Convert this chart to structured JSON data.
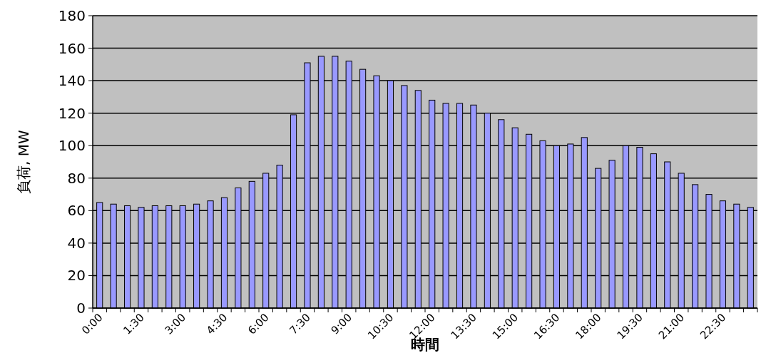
{
  "chart_data": {
    "type": "bar",
    "xlabel": "時間",
    "ylabel": "負荷, MW",
    "categories": [
      "0:00",
      null,
      null,
      "1:30",
      null,
      null,
      "3:00",
      null,
      null,
      "4:30",
      null,
      null,
      "6:00",
      null,
      null,
      "7:30",
      null,
      null,
      "9:00",
      null,
      null,
      "10:30",
      null,
      null,
      "12:00",
      null,
      null,
      "13:30",
      null,
      null,
      "15:00",
      null,
      null,
      "16:30",
      null,
      null,
      "18:00",
      null,
      null,
      "19:30",
      null,
      null,
      "21:00",
      null,
      null,
      "22:30",
      null,
      null
    ],
    "values": [
      65,
      64,
      63,
      62,
      63,
      63,
      63,
      64,
      66,
      68,
      74,
      78,
      83,
      88,
      119,
      151,
      155,
      155,
      152,
      147,
      143,
      140,
      137,
      134,
      128,
      126,
      126,
      125,
      120,
      116,
      111,
      107,
      103,
      100,
      101,
      105,
      86,
      91,
      100,
      99,
      95,
      90,
      83,
      76,
      70,
      66,
      64,
      62
    ],
    "color": "#9999ff",
    "ylim": [
      0,
      180
    ],
    "yticks": [
      0,
      20,
      40,
      60,
      80,
      100,
      120,
      140,
      160,
      180
    ],
    "grid": "y"
  }
}
